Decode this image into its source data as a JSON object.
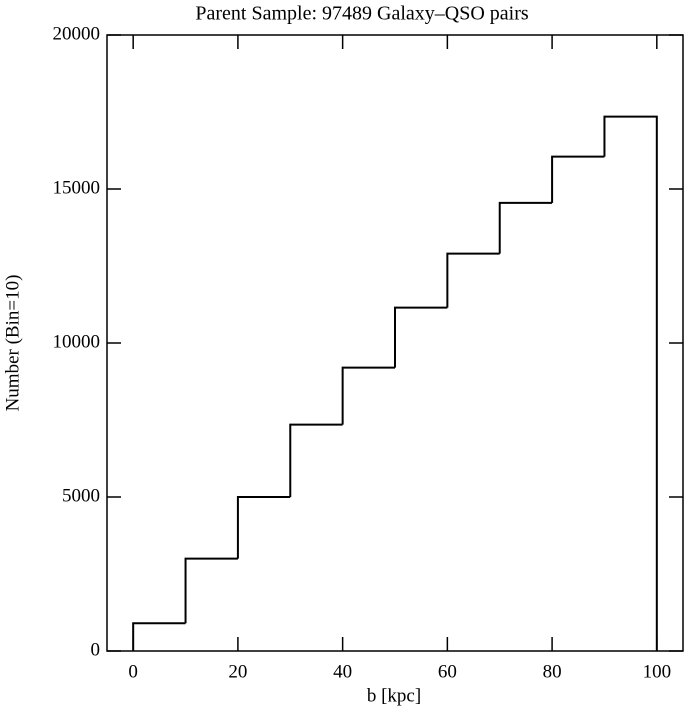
{
  "chart_data": {
    "type": "histogram",
    "title": "Parent Sample: 97489 Galaxy–QSO pairs",
    "xlabel": "b [kpc]",
    "ylabel": "Number (Bin=10)",
    "bins": [
      0,
      10,
      20,
      30,
      40,
      50,
      60,
      70,
      80,
      90,
      100
    ],
    "counts": [
      900,
      3000,
      5000,
      7350,
      9200,
      11150,
      12900,
      14550,
      16050,
      17350
    ],
    "color": "#000000",
    "xlim": [
      -5,
      105
    ],
    "xticks": [
      0,
      20,
      40,
      60,
      80,
      100
    ],
    "ylim": [
      0,
      20000
    ],
    "yticks": [
      0,
      5000,
      10000,
      15000,
      20000
    ]
  }
}
